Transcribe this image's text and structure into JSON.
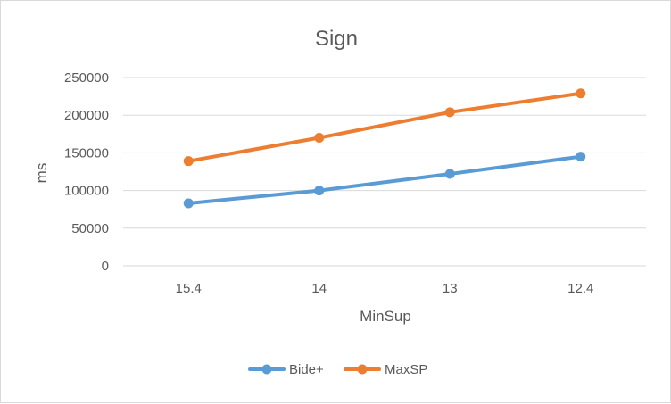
{
  "chart_data": {
    "type": "line",
    "title": "Sign",
    "xlabel": "MinSup",
    "ylabel": "ms",
    "categories": [
      "15.4",
      "14",
      "13",
      "12.4"
    ],
    "ylim": [
      0,
      250000
    ],
    "yticks": [
      0,
      50000,
      100000,
      150000,
      200000,
      250000
    ],
    "ytick_labels": [
      "0",
      "50000",
      "100000",
      "150000",
      "200000",
      "250000"
    ],
    "grid": "horizontal",
    "legend_position": "bottom",
    "series": [
      {
        "name": "Bide+",
        "color": "#5b9bd5",
        "values": [
          83000,
          100000,
          122000,
          145000
        ]
      },
      {
        "name": "MaxSP",
        "color": "#ed7d31",
        "values": [
          139000,
          170000,
          204000,
          229000
        ]
      }
    ]
  }
}
